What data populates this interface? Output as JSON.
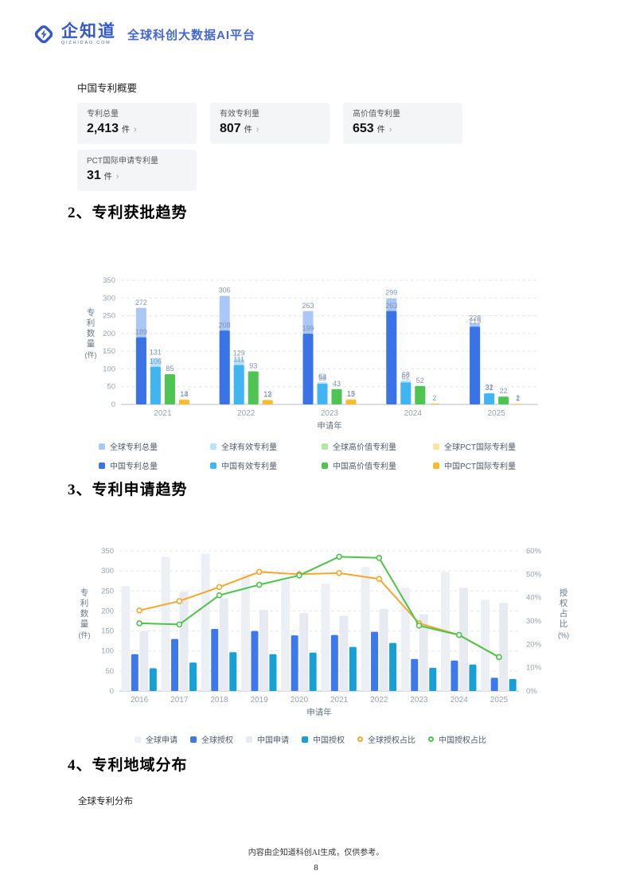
{
  "header": {
    "logo_text": "企知道",
    "logo_sub": "QIZHIDAO.COM",
    "tagline": "全球科创大数据AI平台"
  },
  "summary": {
    "title": "中国专利概要",
    "unit": "件",
    "chevron": "›",
    "cards": [
      {
        "label": "专利总量",
        "value": "2,413"
      },
      {
        "label": "有效专利量",
        "value": "807"
      },
      {
        "label": "高价值专利量",
        "value": "653"
      },
      {
        "label": "PCT国际申请专利量",
        "value": "31"
      }
    ]
  },
  "sections": {
    "grant_title": "2、专利获批趋势",
    "apply_title": "3、专利申请趋势",
    "region_title": "4、专利地域分布",
    "region_subtitle": "全球专利分布"
  },
  "footer": {
    "disclaimer": "内容由企知道科创AI生成，仅供参考。",
    "page_number": "8"
  },
  "chart_data": [
    {
      "type": "bar",
      "title": "专利获批趋势",
      "categories": [
        "2021",
        "2022",
        "2023",
        "2024",
        "2025"
      ],
      "xlabel": "申请年",
      "ylabel": "专利数量(件)",
      "ylim": [
        0,
        350
      ],
      "ytick_step": 50,
      "grid": true,
      "legend_position": "bottom",
      "series": [
        {
          "name": "全球专利总量",
          "color": "#A9C8F7",
          "values": [
            272,
            306,
            263,
            299,
            228
          ]
        },
        {
          "name": "中国专利总量",
          "color": "#3A72E8",
          "values": [
            189,
            208,
            199,
            263,
            219
          ]
        },
        {
          "name": "全球有效专利量",
          "color": "#B9E3FB",
          "values": [
            131,
            129,
            63,
            68,
            32
          ]
        },
        {
          "name": "中国有效专利量",
          "color": "#41B5F2",
          "values": [
            106,
            111,
            58,
            62,
            31
          ]
        },
        {
          "name": "全球高价值专利量",
          "color": "#B4E7A7",
          "values": [
            85,
            93,
            43,
            52,
            22
          ]
        },
        {
          "name": "中国高价值专利量",
          "color": "#4EC552",
          "values": [
            85,
            93,
            43,
            52,
            22
          ]
        },
        {
          "name": "全球PCT国际专利量",
          "color": "#FFE3A3",
          "values": [
            14,
            13,
            15,
            2,
            2
          ]
        },
        {
          "name": "中国PCT国际专利量",
          "color": "#F6BC2C",
          "values": [
            13,
            12,
            13,
            2,
            1
          ]
        }
      ]
    },
    {
      "type": "bar-line-combo",
      "title": "专利申请趋势",
      "categories": [
        "2016",
        "2017",
        "2018",
        "2019",
        "2020",
        "2021",
        "2022",
        "2023",
        "2024",
        "2025"
      ],
      "xlabel": "申请年",
      "ylabel_left": "专利数量(件)",
      "ylabel_right": "授权占比(%)",
      "ylim_left": [
        0,
        350
      ],
      "ytick_step_left": 50,
      "ylim_right": [
        0,
        60
      ],
      "ytick_step_right": 10,
      "grid": true,
      "legend_position": "bottom",
      "bar_series": [
        {
          "name": "全球申请",
          "color": "#ECEFF4",
          "values": [
            262,
            335,
            343,
            292,
            277,
            268,
            310,
            258,
            297,
            228
          ]
        },
        {
          "name": "全球授权",
          "color": "#3E78ED",
          "values": [
            92,
            130,
            155,
            150,
            139,
            140,
            148,
            80,
            76,
            33
          ]
        },
        {
          "name": "中国申请",
          "color": "#E7EBF1",
          "values": [
            150,
            248,
            232,
            203,
            195,
            188,
            205,
            192,
            258,
            220
          ]
        },
        {
          "name": "中国授权",
          "color": "#17A0D3",
          "values": [
            57,
            71,
            97,
            92,
            96,
            110,
            120,
            58,
            66,
            30
          ]
        }
      ],
      "line_series": [
        {
          "name": "全球授权占比",
          "color": "#F7A62B",
          "axis": "right",
          "values": [
            34.5,
            38.5,
            44.5,
            51,
            50,
            50.5,
            48,
            29,
            24,
            14.5
          ]
        },
        {
          "name": "中国授权占比",
          "color": "#4CC44A",
          "axis": "right",
          "values": [
            29,
            28.5,
            41,
            45.5,
            49.5,
            57.5,
            57,
            28,
            24,
            14.5
          ]
        }
      ]
    }
  ]
}
